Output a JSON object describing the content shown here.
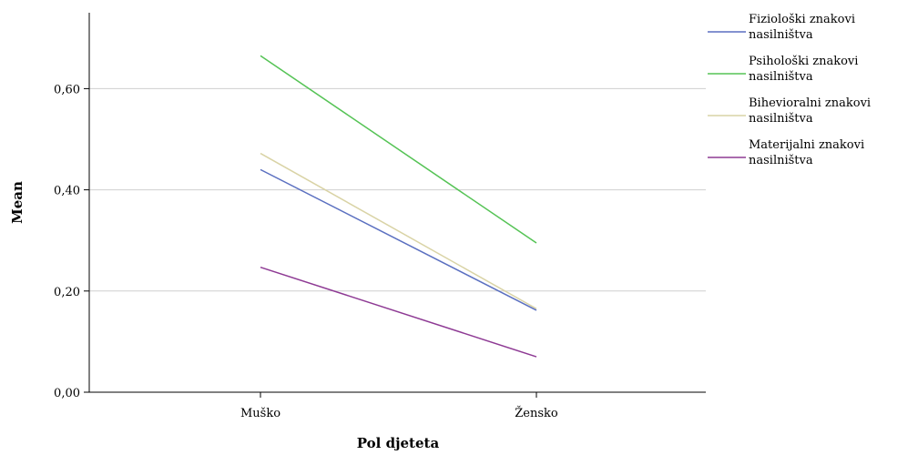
{
  "chart_data": {
    "type": "line",
    "title": "",
    "xlabel": "Pol djeteta",
    "ylabel": "Mean",
    "categories": [
      "Muško",
      "Žensko"
    ],
    "ylim": [
      0,
      0.75
    ],
    "yticks": [
      "0,00",
      "0,20",
      "0,40",
      "0,60"
    ],
    "grid": true,
    "legend_position": "right",
    "series": [
      {
        "name": "Fiziološki znakovi nasilništva",
        "legend_lines": [
          "Fiziološki znakovi",
          "nasilništva"
        ],
        "color": "#5a6fc0",
        "values": [
          0.44,
          0.162
        ]
      },
      {
        "name": "Psihološki znakovi nasilništva",
        "legend_lines": [
          "Psihološki znakovi",
          "nasilništva"
        ],
        "color": "#55c355",
        "values": [
          0.665,
          0.295
        ]
      },
      {
        "name": "Bihevioralni znakovi nasilništva",
        "legend_lines": [
          "Bihevioralni znakovi",
          "nasilništva"
        ],
        "color": "#d9d3a5",
        "values": [
          0.472,
          0.165
        ]
      },
      {
        "name": "Materijalni znakovi nasilništva",
        "legend_lines": [
          "Materijalni znakovi",
          "nasilništva"
        ],
        "color": "#8e3a94",
        "values": [
          0.247,
          0.07
        ]
      }
    ]
  }
}
